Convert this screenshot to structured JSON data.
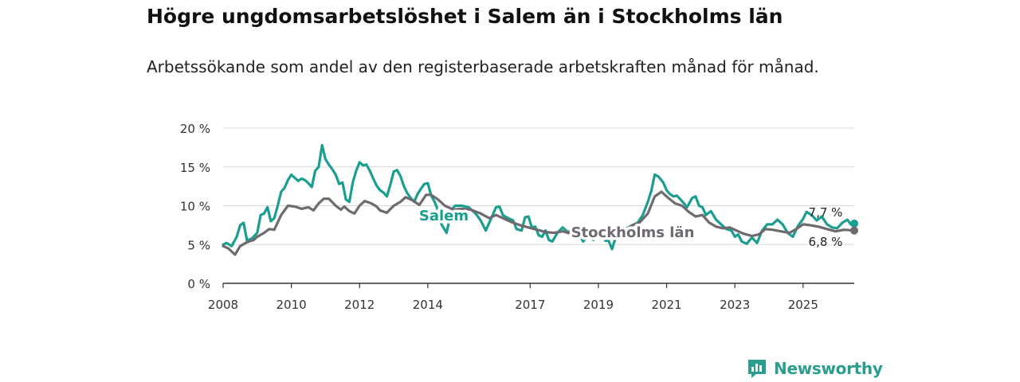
{
  "title": "Högre ungdomsarbetslöshet i Salem än i Stockholms län",
  "subtitle": "Arbetssökande som andel av den registerbaserade arbetskraften månad för månad.",
  "brand": {
    "name": "Newsworthy",
    "icon": "newsworthy-logo-icon",
    "color": "#2a9d8f"
  },
  "chart_data": {
    "type": "line",
    "ylim": [
      0,
      20
    ],
    "yticks": [
      0,
      5,
      10,
      15,
      20
    ],
    "ytick_labels": [
      "0 %",
      "5 %",
      "10 %",
      "15 %",
      "20 %"
    ],
    "xlim": [
      2008,
      2026.5
    ],
    "xticks": [
      2008,
      2010,
      2012,
      2014,
      2017,
      2019,
      2021,
      2023,
      2025
    ],
    "xtick_labels": [
      "2008",
      "2010",
      "2012",
      "2014",
      "2017",
      "2019",
      "2021",
      "2023",
      "2025"
    ],
    "grid": true,
    "series": [
      {
        "name": "Salem",
        "label": "Salem",
        "color": "#1a9e8f",
        "end_label": "7,7 %",
        "points": [
          [
            2008.0,
            5.0
          ],
          [
            2008.1,
            5.2
          ],
          [
            2008.25,
            4.8
          ],
          [
            2008.4,
            6.0
          ],
          [
            2008.5,
            7.5
          ],
          [
            2008.6,
            7.8
          ],
          [
            2008.7,
            5.5
          ],
          [
            2008.85,
            5.8
          ],
          [
            2009.0,
            6.5
          ],
          [
            2009.1,
            8.8
          ],
          [
            2009.2,
            9.0
          ],
          [
            2009.3,
            9.8
          ],
          [
            2009.4,
            8.0
          ],
          [
            2009.5,
            8.4
          ],
          [
            2009.6,
            10.0
          ],
          [
            2009.7,
            11.8
          ],
          [
            2009.8,
            12.3
          ],
          [
            2009.9,
            13.3
          ],
          [
            2010.0,
            14.0
          ],
          [
            2010.1,
            13.6
          ],
          [
            2010.2,
            13.2
          ],
          [
            2010.3,
            13.5
          ],
          [
            2010.4,
            13.3
          ],
          [
            2010.5,
            12.9
          ],
          [
            2010.6,
            12.4
          ],
          [
            2010.7,
            14.5
          ],
          [
            2010.8,
            15.0
          ],
          [
            2010.9,
            17.8
          ],
          [
            2011.0,
            16.0
          ],
          [
            2011.1,
            15.3
          ],
          [
            2011.2,
            14.7
          ],
          [
            2011.3,
            14.0
          ],
          [
            2011.4,
            12.8
          ],
          [
            2011.5,
            13.0
          ],
          [
            2011.6,
            10.8
          ],
          [
            2011.7,
            10.5
          ],
          [
            2011.8,
            13.0
          ],
          [
            2011.9,
            14.5
          ],
          [
            2012.0,
            15.6
          ],
          [
            2012.1,
            15.2
          ],
          [
            2012.2,
            15.3
          ],
          [
            2012.3,
            14.5
          ],
          [
            2012.4,
            13.5
          ],
          [
            2012.5,
            12.6
          ],
          [
            2012.6,
            12.0
          ],
          [
            2012.7,
            11.7
          ],
          [
            2012.8,
            11.2
          ],
          [
            2012.9,
            12.7
          ],
          [
            2013.0,
            14.4
          ],
          [
            2013.1,
            14.6
          ],
          [
            2013.2,
            13.8
          ],
          [
            2013.3,
            12.5
          ],
          [
            2013.4,
            11.6
          ],
          [
            2013.5,
            11.0
          ],
          [
            2013.6,
            10.5
          ],
          [
            2013.7,
            11.5
          ],
          [
            2013.8,
            12.2
          ],
          [
            2013.9,
            12.8
          ],
          [
            2014.0,
            12.9
          ],
          [
            2014.1,
            11.3
          ],
          [
            2014.2,
            10.5
          ],
          [
            2014.3,
            9.4
          ],
          [
            2014.4,
            7.6
          ],
          [
            2014.55,
            6.5
          ],
          [
            2014.7,
            9.5
          ],
          [
            2014.8,
            10.0
          ],
          [
            2015.0,
            10.0
          ],
          [
            2015.2,
            9.8
          ],
          [
            2015.4,
            9.0
          ],
          [
            2015.55,
            8.1
          ],
          [
            2015.7,
            6.8
          ],
          [
            2015.85,
            8.3
          ],
          [
            2016.0,
            9.8
          ],
          [
            2016.1,
            9.9
          ],
          [
            2016.2,
            8.8
          ],
          [
            2016.35,
            8.4
          ],
          [
            2016.5,
            8.1
          ],
          [
            2016.6,
            7.0
          ],
          [
            2016.75,
            6.8
          ],
          [
            2016.85,
            8.5
          ],
          [
            2016.95,
            8.6
          ],
          [
            2017.05,
            7.2
          ],
          [
            2017.15,
            7.3
          ],
          [
            2017.25,
            6.2
          ],
          [
            2017.35,
            6.0
          ],
          [
            2017.45,
            6.8
          ],
          [
            2017.55,
            5.6
          ],
          [
            2017.65,
            5.4
          ],
          [
            2017.8,
            6.5
          ],
          [
            2017.95,
            7.2
          ],
          [
            2018.1,
            6.6
          ],
          [
            2018.25,
            6.9
          ],
          [
            2018.4,
            6.7
          ],
          [
            2018.55,
            5.4
          ],
          [
            2018.7,
            6.1
          ],
          [
            2018.85,
            5.6
          ],
          [
            2019.0,
            6.5
          ],
          [
            2019.1,
            6.3
          ],
          [
            2019.2,
            5.5
          ],
          [
            2019.3,
            5.5
          ],
          [
            2019.4,
            4.4
          ],
          [
            2019.5,
            5.8
          ],
          [
            2019.65,
            6.5
          ],
          [
            2019.8,
            7.0
          ],
          [
            2020.0,
            7.5
          ],
          [
            2020.15,
            7.8
          ],
          [
            2020.3,
            8.8
          ],
          [
            2020.45,
            10.5
          ],
          [
            2020.55,
            11.9
          ],
          [
            2020.65,
            14.0
          ],
          [
            2020.75,
            13.8
          ],
          [
            2020.9,
            13.0
          ],
          [
            2021.0,
            12.0
          ],
          [
            2021.1,
            11.5
          ],
          [
            2021.2,
            11.2
          ],
          [
            2021.3,
            11.3
          ],
          [
            2021.45,
            10.6
          ],
          [
            2021.6,
            9.8
          ],
          [
            2021.75,
            11.0
          ],
          [
            2021.85,
            11.2
          ],
          [
            2021.95,
            10.0
          ],
          [
            2022.05,
            9.8
          ],
          [
            2022.15,
            8.8
          ],
          [
            2022.3,
            9.3
          ],
          [
            2022.45,
            8.2
          ],
          [
            2022.6,
            7.6
          ],
          [
            2022.75,
            7.0
          ],
          [
            2022.9,
            6.8
          ],
          [
            2023.0,
            6.0
          ],
          [
            2023.1,
            6.3
          ],
          [
            2023.2,
            5.4
          ],
          [
            2023.35,
            5.1
          ],
          [
            2023.5,
            5.9
          ],
          [
            2023.65,
            5.2
          ],
          [
            2023.8,
            6.8
          ],
          [
            2023.95,
            7.6
          ],
          [
            2024.1,
            7.6
          ],
          [
            2024.25,
            8.2
          ],
          [
            2024.4,
            7.6
          ],
          [
            2024.55,
            6.5
          ],
          [
            2024.7,
            6.0
          ],
          [
            2024.85,
            7.4
          ],
          [
            2025.0,
            8.3
          ],
          [
            2025.1,
            9.2
          ],
          [
            2025.25,
            8.8
          ],
          [
            2025.4,
            8.1
          ],
          [
            2025.55,
            8.6
          ],
          [
            2025.7,
            7.6
          ],
          [
            2025.85,
            7.2
          ],
          [
            2026.0,
            7.1
          ],
          [
            2026.15,
            7.8
          ],
          [
            2026.3,
            8.2
          ],
          [
            2026.4,
            7.6
          ],
          [
            2026.5,
            7.7
          ]
        ]
      },
      {
        "name": "Stockholms län",
        "label": "Stockholms län",
        "color": "#6e6a70",
        "end_label": "6,8 %",
        "points": [
          [
            2008.0,
            4.8
          ],
          [
            2008.15,
            4.5
          ],
          [
            2008.35,
            3.7
          ],
          [
            2008.5,
            4.8
          ],
          [
            2008.7,
            5.3
          ],
          [
            2008.9,
            5.6
          ],
          [
            2009.0,
            6.0
          ],
          [
            2009.2,
            6.5
          ],
          [
            2009.35,
            7.0
          ],
          [
            2009.5,
            6.9
          ],
          [
            2009.7,
            8.8
          ],
          [
            2009.9,
            10.0
          ],
          [
            2010.1,
            9.9
          ],
          [
            2010.3,
            9.6
          ],
          [
            2010.5,
            9.8
          ],
          [
            2010.65,
            9.4
          ],
          [
            2010.8,
            10.3
          ],
          [
            2010.95,
            10.9
          ],
          [
            2011.1,
            10.9
          ],
          [
            2011.3,
            10.0
          ],
          [
            2011.45,
            9.5
          ],
          [
            2011.55,
            9.9
          ],
          [
            2011.7,
            9.3
          ],
          [
            2011.85,
            9.0
          ],
          [
            2012.0,
            10.0
          ],
          [
            2012.15,
            10.6
          ],
          [
            2012.35,
            10.3
          ],
          [
            2012.5,
            9.9
          ],
          [
            2012.6,
            9.4
          ],
          [
            2012.8,
            9.1
          ],
          [
            2013.0,
            10.0
          ],
          [
            2013.2,
            10.5
          ],
          [
            2013.35,
            11.1
          ],
          [
            2013.55,
            10.7
          ],
          [
            2013.75,
            10.1
          ],
          [
            2013.95,
            11.4
          ],
          [
            2014.1,
            11.4
          ],
          [
            2014.3,
            10.8
          ],
          [
            2014.5,
            10.0
          ],
          [
            2014.75,
            9.5
          ],
          [
            2015.0,
            9.6
          ],
          [
            2015.25,
            9.5
          ],
          [
            2015.55,
            9.0
          ],
          [
            2015.8,
            8.4
          ],
          [
            2016.0,
            8.8
          ],
          [
            2016.2,
            8.4
          ],
          [
            2016.45,
            7.9
          ],
          [
            2016.7,
            7.5
          ],
          [
            2016.95,
            7.2
          ],
          [
            2017.2,
            6.9
          ],
          [
            2017.45,
            6.6
          ],
          [
            2017.7,
            6.5
          ],
          [
            2017.95,
            6.7
          ],
          [
            2018.2,
            6.4
          ],
          [
            2018.45,
            6.1
          ],
          [
            2018.7,
            6.0
          ],
          [
            2019.0,
            6.0
          ],
          [
            2019.2,
            5.9
          ],
          [
            2019.45,
            5.9
          ],
          [
            2019.7,
            6.5
          ],
          [
            2020.0,
            7.5
          ],
          [
            2020.2,
            7.8
          ],
          [
            2020.45,
            9.0
          ],
          [
            2020.65,
            11.2
          ],
          [
            2020.85,
            11.8
          ],
          [
            2021.05,
            11.0
          ],
          [
            2021.25,
            10.3
          ],
          [
            2021.45,
            10.0
          ],
          [
            2021.65,
            9.2
          ],
          [
            2021.85,
            8.6
          ],
          [
            2022.05,
            8.8
          ],
          [
            2022.25,
            7.8
          ],
          [
            2022.45,
            7.3
          ],
          [
            2022.65,
            7.1
          ],
          [
            2022.85,
            7.2
          ],
          [
            2023.05,
            6.8
          ],
          [
            2023.25,
            6.4
          ],
          [
            2023.5,
            6.1
          ],
          [
            2023.7,
            6.3
          ],
          [
            2023.9,
            7.0
          ],
          [
            2024.1,
            6.9
          ],
          [
            2024.35,
            6.7
          ],
          [
            2024.6,
            6.5
          ],
          [
            2024.8,
            7.0
          ],
          [
            2025.0,
            7.6
          ],
          [
            2025.2,
            7.5
          ],
          [
            2025.45,
            7.3
          ],
          [
            2025.7,
            7.0
          ],
          [
            2025.95,
            6.7
          ],
          [
            2026.2,
            6.9
          ],
          [
            2026.5,
            6.8
          ]
        ]
      }
    ]
  }
}
